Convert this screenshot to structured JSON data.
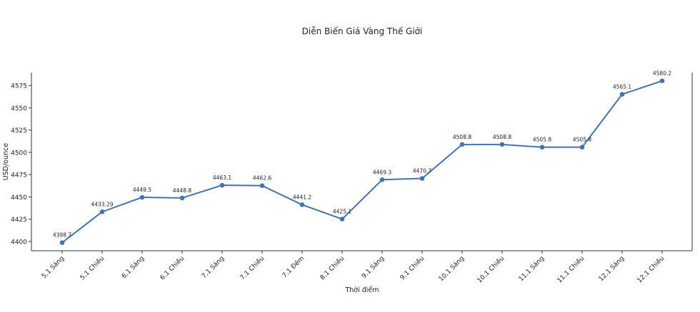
{
  "chart_data": {
    "type": "line",
    "title": "Diễn Biến Giá Vàng Thế Giới",
    "xlabel": "Thời điểm",
    "ylabel": "USD/ounce",
    "categories": [
      "5.1 Sáng",
      "5.1 Chiều",
      "6.1 Sáng",
      "6.1 Chiều",
      "7.1 Sáng",
      "7.1 Chiều",
      "7.1 Đêm",
      "8.1 Chiều",
      "9.1 Sáng",
      "9.1 Chiều",
      "10.1 Sáng",
      "10.1 Chiều",
      "11.1 Sáng",
      "11.1 Chiều",
      "12.1 Sáng",
      "12.1 Chiều"
    ],
    "values": [
      4398.7,
      4433.29,
      4449.5,
      4448.8,
      4463.1,
      4462.6,
      4441.2,
      4425.1,
      4469.3,
      4470.7,
      4508.8,
      4508.8,
      4505.8,
      4505.8,
      4565.1,
      4580.2
    ],
    "data_labels": [
      "4398.7",
      "4433.29",
      "4449.5",
      "4448.8",
      "4463.1",
      "4462.6",
      "4441.2",
      "4425.1",
      "4469.3",
      "4470.7",
      "4508.8",
      "4508.8",
      "4505.8",
      "4505.8",
      "4565.1",
      "4580.2"
    ],
    "yticks": [
      4400,
      4425,
      4450,
      4475,
      4500,
      4525,
      4550,
      4575
    ],
    "ylim": [
      4389.6,
      4589.4
    ],
    "grid": false,
    "color": "#4474a8",
    "marker": "circle"
  }
}
